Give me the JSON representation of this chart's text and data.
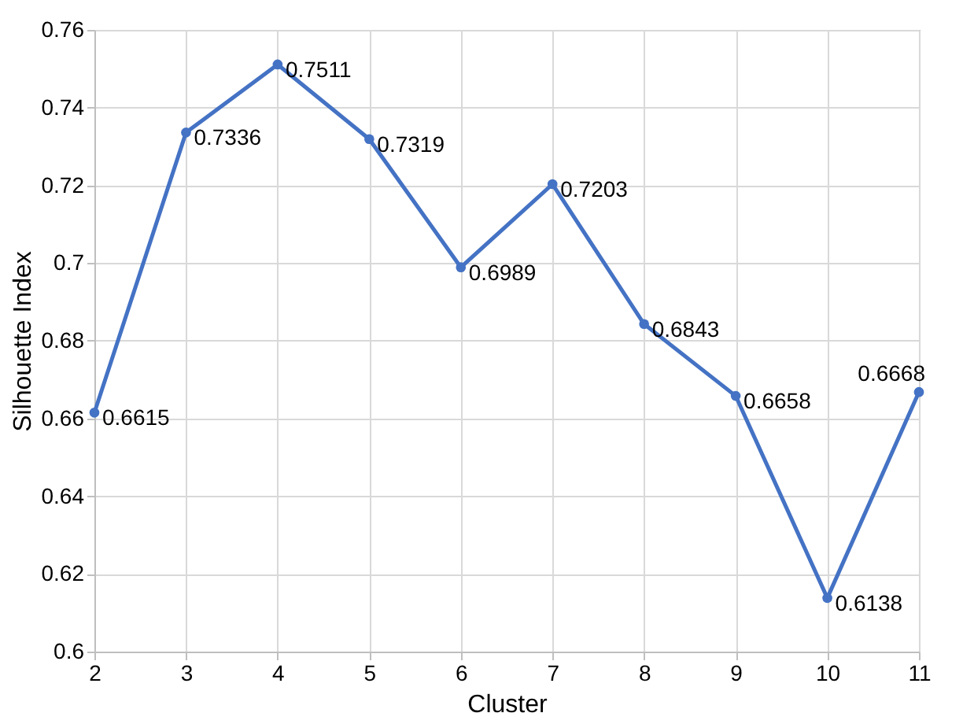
{
  "chart_data": {
    "type": "line",
    "xlabel": "Cluster",
    "ylabel": "Silhouette Index",
    "x": [
      2,
      3,
      4,
      5,
      6,
      7,
      8,
      9,
      10,
      11
    ],
    "series": [
      {
        "color": "#4472c4",
        "values": [
          0.6615,
          0.7336,
          0.7511,
          0.7319,
          0.6989,
          0.7203,
          0.6843,
          0.6658,
          0.6138,
          0.6668
        ]
      }
    ],
    "xlim": [
      2,
      11
    ],
    "xticks": [
      2,
      3,
      4,
      5,
      6,
      7,
      8,
      9,
      10,
      11
    ],
    "ylim": [
      0.6,
      0.76
    ],
    "yticks": [
      0.6,
      0.62,
      0.64,
      0.66,
      0.68,
      0.7,
      0.72,
      0.74,
      0.76
    ],
    "grid": true,
    "marker": "circle",
    "line_style": "solid",
    "data_labels": true
  }
}
